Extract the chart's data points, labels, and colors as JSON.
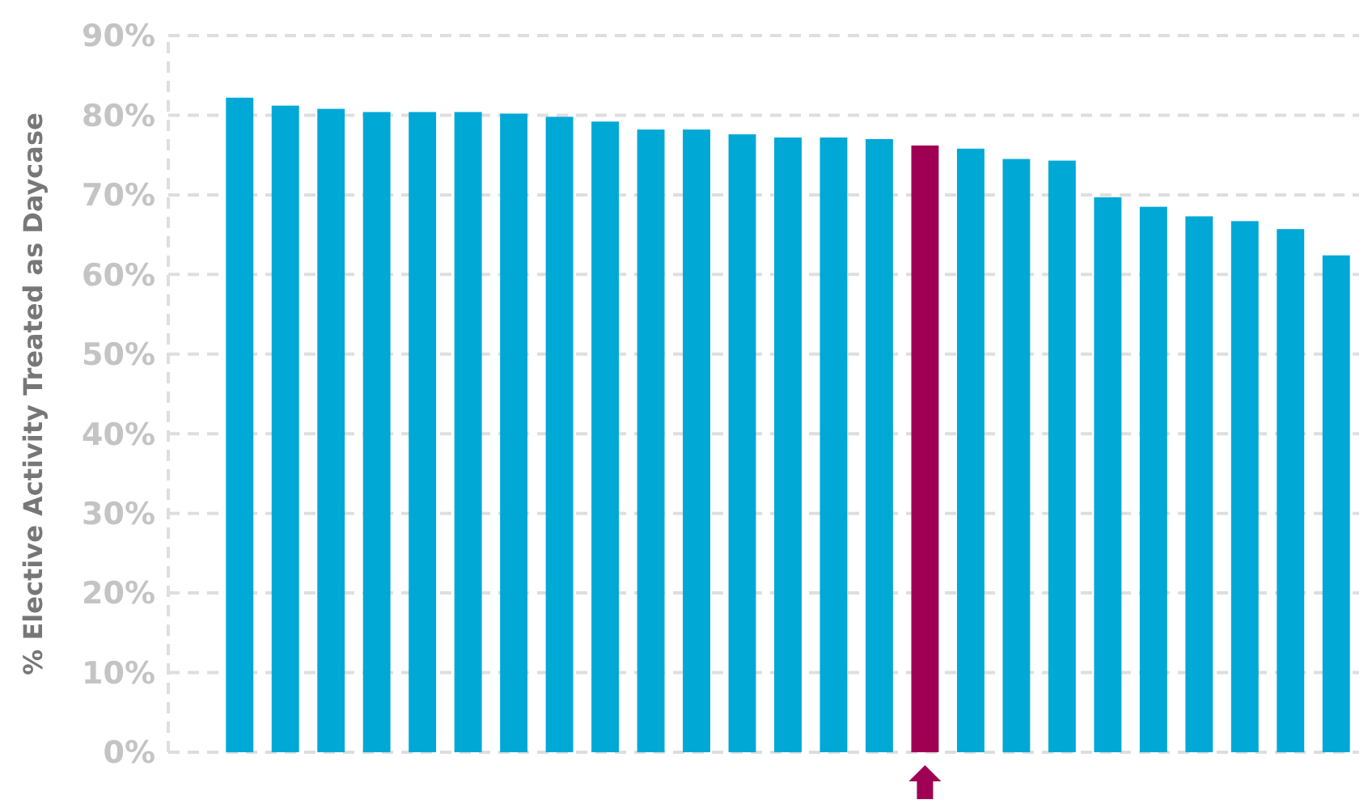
{
  "chart_data": {
    "type": "bar",
    "ylabel": "% Elective Activity Treated as Daycase",
    "categories": [
      null,
      null,
      null,
      null,
      null,
      null,
      null,
      null,
      null,
      null,
      null,
      null,
      null,
      null,
      null,
      null,
      null,
      null,
      null,
      null,
      null,
      null,
      null,
      null,
      null
    ],
    "values": [
      82.2,
      81.2,
      80.8,
      80.4,
      80.4,
      80.4,
      80.2,
      79.8,
      79.2,
      78.2,
      78.2,
      77.6,
      77.2,
      77.2,
      77.0,
      76.2,
      75.8,
      74.5,
      74.3,
      69.7,
      68.5,
      67.3,
      66.7,
      65.7,
      62.4
    ],
    "colors": [
      "#00a8d6",
      "#00a8d6",
      "#00a8d6",
      "#00a8d6",
      "#00a8d6",
      "#00a8d6",
      "#00a8d6",
      "#00a8d6",
      "#00a8d6",
      "#00a8d6",
      "#00a8d6",
      "#00a8d6",
      "#00a8d6",
      "#00a8d6",
      "#00a8d6",
      "#a00054",
      "#00a8d6",
      "#00a8d6",
      "#00a8d6",
      "#00a8d6",
      "#00a8d6",
      "#00a8d6",
      "#00a8d6",
      "#00a8d6",
      "#00a8d6"
    ],
    "ylim": [
      0,
      90
    ],
    "yticks": [
      {
        "value": 0,
        "label": "0%"
      },
      {
        "value": 10,
        "label": "10%"
      },
      {
        "value": 20,
        "label": "20%"
      },
      {
        "value": 30,
        "label": "30%"
      },
      {
        "value": 40,
        "label": "40%"
      },
      {
        "value": 50,
        "label": "50%"
      },
      {
        "value": 60,
        "label": "60%"
      },
      {
        "value": 70,
        "label": "70%"
      },
      {
        "value": 80,
        "label": "80%"
      },
      {
        "value": 90,
        "label": "90%"
      }
    ],
    "grid": "y"
  }
}
